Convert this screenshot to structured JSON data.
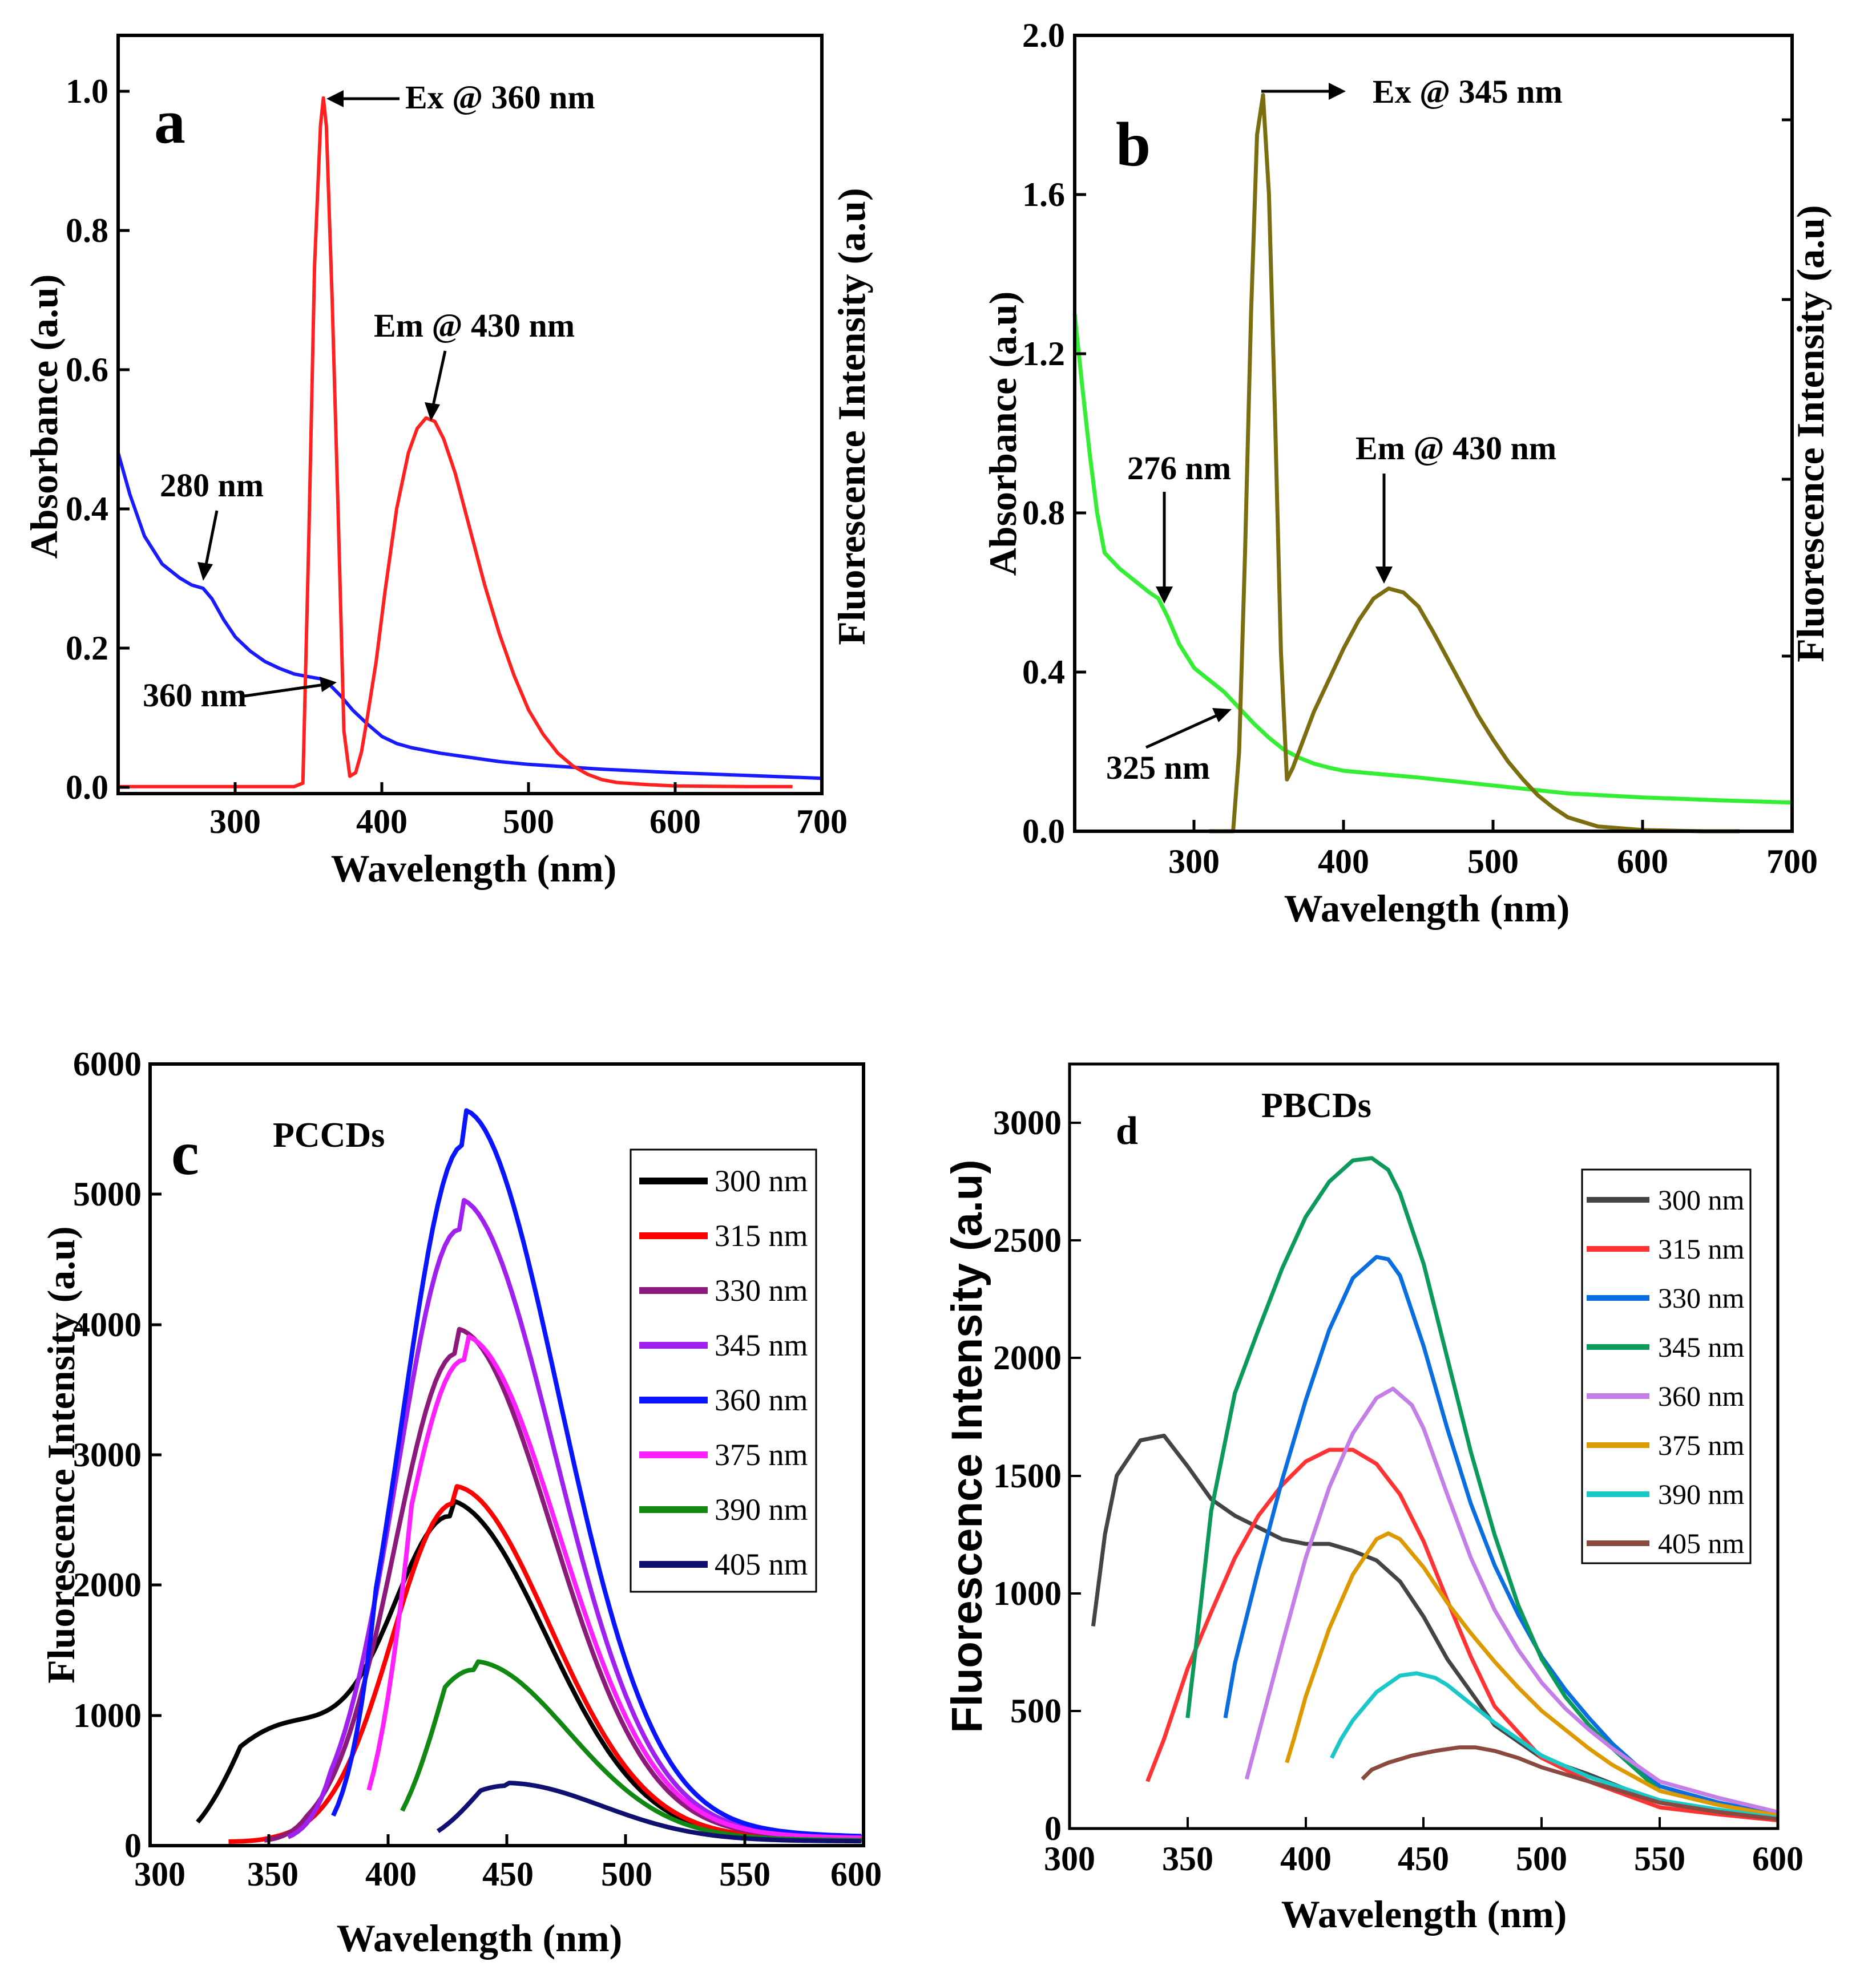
{
  "colors": {
    "a_absorbance": "#1a1aff",
    "a_fluorescence": "#ff2020",
    "b_absorbance": "#33ee33",
    "b_fluorescence": "#7a6e10"
  },
  "chart_data": [
    {
      "panel": "a",
      "type": "line",
      "panel_label": "a",
      "xlabel": "Wavelength (nm)",
      "ylabel": "Absorbance (a.u)",
      "y2label": "Fluorescence Intensity (a.u)",
      "xlim": [
        220,
        700
      ],
      "ylim": [
        -0.01,
        1.08
      ],
      "xticks": [
        300,
        400,
        500,
        600,
        700
      ],
      "yticks": [
        0.0,
        0.2,
        0.4,
        0.6,
        0.8,
        1.0
      ],
      "xtick_labels": [
        "300",
        "400",
        "500",
        "600",
        "700"
      ],
      "ytick_labels": [
        "0.0",
        "0.2",
        "0.4",
        "0.6",
        "0.8",
        "1.0"
      ],
      "series": [
        {
          "name": "Absorbance",
          "color": "#1a1aff",
          "x": [
            220,
            228,
            238,
            250,
            262,
            270,
            278,
            284,
            292,
            300,
            310,
            320,
            330,
            340,
            350,
            358,
            365,
            372,
            380,
            390,
            400,
            410,
            420,
            440,
            460,
            480,
            500,
            550,
            600,
            650,
            700
          ],
          "y": [
            0.48,
            0.42,
            0.36,
            0.32,
            0.3,
            0.29,
            0.285,
            0.27,
            0.24,
            0.215,
            0.195,
            0.18,
            0.17,
            0.162,
            0.158,
            0.155,
            0.145,
            0.13,
            0.11,
            0.09,
            0.072,
            0.062,
            0.056,
            0.048,
            0.042,
            0.036,
            0.032,
            0.025,
            0.02,
            0.016,
            0.012
          ]
        },
        {
          "name": "Fluorescence",
          "color": "#ff2020",
          "x": [
            220,
            300,
            340,
            346,
            350,
            354,
            358,
            360,
            362,
            366,
            370,
            374,
            378,
            382,
            386,
            390,
            396,
            402,
            410,
            418,
            424,
            430,
            436,
            442,
            450,
            460,
            470,
            480,
            490,
            500,
            510,
            520,
            530,
            540,
            550,
            560,
            580,
            600,
            650,
            680
          ],
          "y": [
            0.0,
            0.0,
            0.0,
            0.005,
            0.35,
            0.75,
            0.95,
            0.99,
            0.95,
            0.7,
            0.4,
            0.08,
            0.015,
            0.02,
            0.05,
            0.1,
            0.18,
            0.28,
            0.4,
            0.48,
            0.515,
            0.53,
            0.525,
            0.5,
            0.45,
            0.37,
            0.29,
            0.22,
            0.16,
            0.11,
            0.075,
            0.048,
            0.03,
            0.018,
            0.01,
            0.006,
            0.003,
            0.001,
            0.0,
            0.0
          ]
        }
      ],
      "annotations": [
        {
          "text": "Ex @ 360 nm"
        },
        {
          "text": "Em @ 430 nm"
        },
        {
          "text": "280 nm"
        },
        {
          "text": "360 nm"
        }
      ]
    },
    {
      "panel": "b",
      "type": "line",
      "panel_label": "b",
      "xlabel": "Wavelength (nm)",
      "ylabel": "Absorbance (a.u)",
      "y2label": "Fluorescence Intensity (a.u)",
      "xlim": [
        220,
        700
      ],
      "ylim": [
        0.0,
        2.0
      ],
      "xticks": [
        300,
        400,
        500,
        600,
        700
      ],
      "yticks": [
        0.0,
        0.4,
        0.8,
        1.2,
        1.6,
        2.0
      ],
      "xtick_labels": [
        "300",
        "400",
        "500",
        "600",
        "700"
      ],
      "ytick_labels": [
        "0.0",
        "0.4",
        "0.8",
        "1.2",
        "1.6",
        "2.0"
      ],
      "series": [
        {
          "name": "Absorbance",
          "color": "#33ee33",
          "x": [
            220,
            225,
            230,
            235,
            240,
            250,
            260,
            270,
            276,
            282,
            290,
            300,
            310,
            320,
            330,
            340,
            350,
            360,
            370,
            380,
            390,
            400,
            420,
            450,
            500,
            550,
            600,
            650,
            700
          ],
          "y": [
            1.3,
            1.12,
            0.95,
            0.8,
            0.7,
            0.66,
            0.63,
            0.6,
            0.585,
            0.54,
            0.47,
            0.41,
            0.38,
            0.35,
            0.31,
            0.27,
            0.235,
            0.205,
            0.185,
            0.17,
            0.16,
            0.152,
            0.145,
            0.135,
            0.115,
            0.095,
            0.085,
            0.078,
            0.072
          ]
        },
        {
          "name": "Fluorescence",
          "color": "#7a6e10",
          "x": [
            310,
            326,
            330,
            334,
            338,
            342,
            346,
            350,
            354,
            358,
            362,
            366,
            372,
            380,
            390,
            400,
            410,
            420,
            430,
            440,
            450,
            460,
            470,
            480,
            490,
            500,
            510,
            520,
            530,
            540,
            550,
            570,
            600,
            640,
            665
          ],
          "y": [
            0.0,
            0.0,
            0.2,
            0.7,
            1.3,
            1.75,
            1.85,
            1.6,
            1.05,
            0.45,
            0.13,
            0.16,
            0.22,
            0.3,
            0.38,
            0.46,
            0.53,
            0.585,
            0.61,
            0.6,
            0.565,
            0.5,
            0.43,
            0.36,
            0.29,
            0.23,
            0.175,
            0.13,
            0.09,
            0.06,
            0.035,
            0.012,
            0.003,
            0.0,
            0.0
          ]
        }
      ],
      "annotations": [
        {
          "text": "Ex @ 345 nm"
        },
        {
          "text": "Em @ 430 nm"
        },
        {
          "text": "276 nm"
        },
        {
          "text": "325 nm"
        }
      ]
    },
    {
      "panel": "c",
      "type": "line",
      "panel_label": "c",
      "sample_label": "PCCDs",
      "xlabel": "Wavelength (nm)",
      "ylabel": "Fluorescence Intensity (a.u)",
      "xlim": [
        300,
        600
      ],
      "ylim": [
        0,
        6000
      ],
      "xticks": [
        300,
        350,
        400,
        450,
        500,
        550,
        600
      ],
      "yticks": [
        0,
        1000,
        2000,
        3000,
        4000,
        5000,
        6000
      ],
      "xtick_labels": [
        "300",
        "350",
        "400",
        "450",
        "500",
        "550",
        "600"
      ],
      "ytick_labels": [
        "0",
        "1000",
        "2000",
        "3000",
        "4000",
        "5000",
        "6000"
      ],
      "series": [
        {
          "name": "300 nm",
          "color": "#000000",
          "start": 320,
          "peak_x": 427,
          "peak_y": 2450,
          "shoulder": true
        },
        {
          "name": "315 nm",
          "color": "#ff0000",
          "start": 333,
          "peak_x": 428,
          "peak_y": 2600
        },
        {
          "name": "330 nm",
          "color": "#8b1a7a",
          "start": 348,
          "peak_x": 429,
          "peak_y": 3750
        },
        {
          "name": "345 nm",
          "color": "#a020f0",
          "start": 358,
          "peak_x": 430,
          "peak_y": 4700
        },
        {
          "name": "360 nm",
          "color": "#0a14ff",
          "start": 377,
          "peak_x": 432,
          "peak_y": 5350
        },
        {
          "name": "375 nm",
          "color": "#ff20ff",
          "start": 392,
          "peak_x": 432,
          "peak_y": 3700
        },
        {
          "name": "390 nm",
          "color": "#118811",
          "start": 406,
          "peak_x": 436,
          "peak_y": 1320
        },
        {
          "name": "405 nm",
          "color": "#101070",
          "start": 421,
          "peak_x": 450,
          "peak_y": 430
        }
      ]
    },
    {
      "panel": "d",
      "type": "line",
      "panel_label": "d",
      "sample_label": "PBCDs",
      "xlabel": "Wavelength (nm)",
      "ylabel": "Fluorescence Intensity (a.u)",
      "xlim": [
        300,
        600
      ],
      "ylim": [
        0,
        3250
      ],
      "xticks": [
        300,
        350,
        400,
        450,
        500,
        550,
        600
      ],
      "yticks": [
        0,
        500,
        1000,
        1500,
        2000,
        2500,
        3000
      ],
      "xtick_labels": [
        "300",
        "350",
        "400",
        "450",
        "500",
        "550",
        "600"
      ],
      "ytick_labels": [
        "0",
        "500",
        "1000",
        "1500",
        "2000",
        "2500",
        "3000"
      ],
      "series": [
        {
          "name": "300 nm",
          "color": "#444444",
          "x": [
            310,
            315,
            320,
            330,
            340,
            350,
            360,
            370,
            380,
            390,
            400,
            410,
            420,
            430,
            440,
            450,
            460,
            480,
            500,
            520,
            550,
            575,
            600
          ],
          "y": [
            860,
            1250,
            1500,
            1650,
            1670,
            1540,
            1400,
            1330,
            1280,
            1230,
            1210,
            1210,
            1180,
            1140,
            1050,
            900,
            720,
            440,
            300,
            230,
            110,
            70,
            40
          ]
        },
        {
          "name": "315 nm",
          "color": "#ff3333",
          "x": [
            333,
            340,
            350,
            360,
            370,
            380,
            390,
            400,
            410,
            420,
            430,
            440,
            450,
            460,
            470,
            480,
            500,
            520,
            550,
            575,
            600
          ],
          "y": [
            200,
            380,
            680,
            920,
            1150,
            1330,
            1460,
            1560,
            1610,
            1610,
            1550,
            1420,
            1220,
            970,
            730,
            520,
            300,
            200,
            90,
            60,
            35
          ]
        },
        {
          "name": "330 nm",
          "color": "#0a6ee0",
          "x": [
            366,
            370,
            380,
            390,
            400,
            410,
            420,
            430,
            435,
            440,
            450,
            460,
            470,
            480,
            490,
            500,
            510,
            520,
            530,
            550,
            575,
            600
          ],
          "y": [
            470,
            700,
            1100,
            1480,
            1820,
            2120,
            2340,
            2430,
            2420,
            2350,
            2050,
            1700,
            1380,
            1120,
            910,
            730,
            590,
            470,
            360,
            180,
            110,
            60
          ]
        },
        {
          "name": "345 nm",
          "color": "#0b9a5a",
          "x": [
            350,
            355,
            360,
            370,
            380,
            390,
            400,
            410,
            420,
            428,
            435,
            440,
            450,
            460,
            470,
            480,
            490,
            500,
            510,
            520,
            530,
            550,
            575,
            600
          ],
          "y": [
            470,
            900,
            1350,
            1850,
            2120,
            2380,
            2600,
            2750,
            2840,
            2850,
            2800,
            2700,
            2400,
            2000,
            1600,
            1250,
            950,
            720,
            560,
            440,
            340,
            160,
            100,
            55
          ]
        },
        {
          "name": "360 nm",
          "color": "#c47fe6",
          "x": [
            375,
            380,
            390,
            400,
            410,
            420,
            430,
            437,
            445,
            450,
            460,
            470,
            480,
            490,
            500,
            510,
            520,
            530,
            550,
            575,
            600
          ],
          "y": [
            210,
            400,
            780,
            1150,
            1450,
            1680,
            1830,
            1870,
            1800,
            1700,
            1420,
            1150,
            930,
            760,
            620,
            510,
            420,
            340,
            200,
            130,
            70
          ]
        },
        {
          "name": "375 nm",
          "color": "#dd9a00",
          "x": [
            392,
            395,
            400,
            410,
            420,
            430,
            435,
            440,
            450,
            460,
            470,
            480,
            490,
            500,
            510,
            520,
            530,
            550,
            575,
            600
          ],
          "y": [
            280,
            380,
            560,
            850,
            1080,
            1230,
            1255,
            1230,
            1110,
            960,
            830,
            710,
            600,
            500,
            420,
            340,
            270,
            160,
            100,
            55
          ]
        },
        {
          "name": "390 nm",
          "color": "#1ac8c8",
          "x": [
            411,
            415,
            420,
            430,
            440,
            447,
            455,
            460,
            470,
            480,
            490,
            500,
            520,
            550,
            575,
            600
          ],
          "y": [
            300,
            380,
            460,
            580,
            650,
            660,
            640,
            610,
            530,
            450,
            380,
            310,
            220,
            120,
            80,
            45
          ]
        },
        {
          "name": "405 nm",
          "color": "#8a4a40",
          "x": [
            424,
            428,
            435,
            445,
            455,
            465,
            472,
            480,
            490,
            500,
            520,
            550,
            575,
            600
          ],
          "y": [
            210,
            250,
            280,
            310,
            330,
            345,
            345,
            330,
            300,
            260,
            200,
            110,
            70,
            40
          ]
        }
      ]
    }
  ]
}
